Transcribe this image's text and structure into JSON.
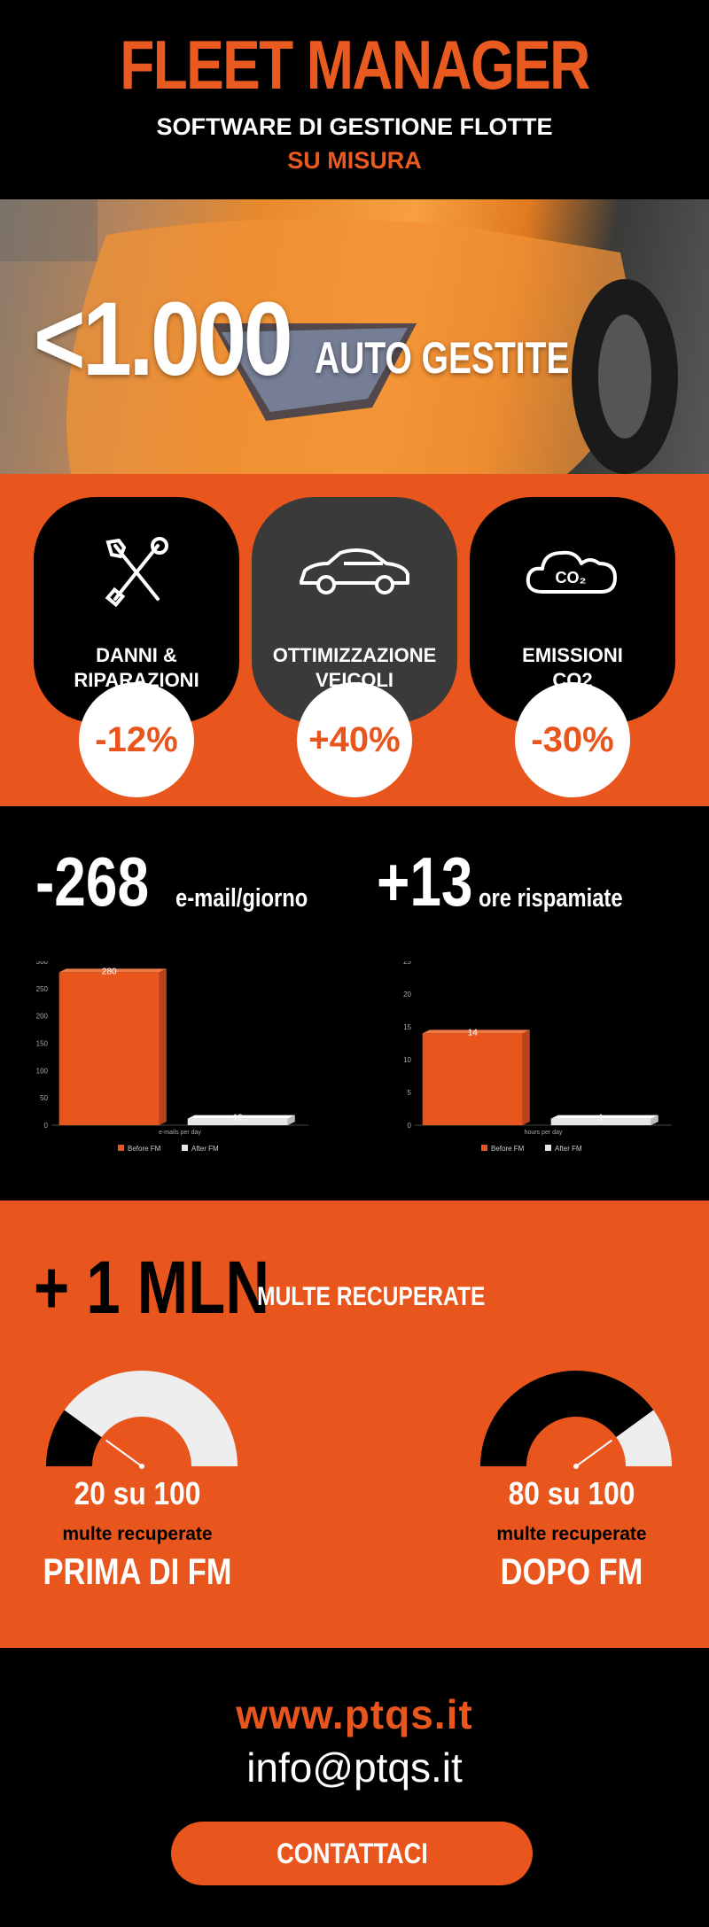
{
  "header": {
    "title": "FLEET MANAGER",
    "subtitle_line1": "SOFTWARE DI GESTIONE FLOTTE",
    "subtitle_line2": "SU MISURA"
  },
  "hero": {
    "big": "<1.000",
    "small": "AUTO GESTITE"
  },
  "kpis": [
    {
      "label_line1": "DANNI &",
      "label_line2": "RIPARAZIONI",
      "value": "-12%",
      "icon": "tools-icon"
    },
    {
      "label_line1": "OTTIMIZZAZIONE",
      "label_line2": "VEICOLI",
      "value": "+40%",
      "icon": "car-icon"
    },
    {
      "label_line1": "EMISSIONI",
      "label_line2": "CO2",
      "value": "-30%",
      "icon": "co2-cloud-icon"
    }
  ],
  "stats": {
    "emails_big": "-268",
    "emails_small": "e-mail/giorno",
    "hours_big": "+13",
    "hours_small": "ore rispamiate"
  },
  "chart_data": [
    {
      "type": "bar",
      "categories": [
        "Before FM",
        "After FM"
      ],
      "values": [
        280,
        12
      ],
      "data_labels": [
        "280",
        "12"
      ],
      "xlabel": "e-mails per day",
      "ylabel": "",
      "ylim": [
        0,
        300
      ],
      "yticks": [
        0,
        50,
        100,
        150,
        200,
        250,
        300
      ],
      "legend": [
        "Before FM",
        "After FM"
      ],
      "legend_position": "bottom",
      "colors": [
        "#e8561e",
        "#e6e6e6"
      ]
    },
    {
      "type": "bar",
      "categories": [
        "Before FM",
        "After FM"
      ],
      "values": [
        14,
        1
      ],
      "data_labels": [
        "14",
        "1"
      ],
      "xlabel": "hours per day",
      "ylabel": "",
      "ylim": [
        0,
        25
      ],
      "yticks": [
        0,
        5,
        10,
        15,
        20,
        25
      ],
      "legend": [
        "Before FM",
        "After FM"
      ],
      "legend_position": "bottom",
      "colors": [
        "#e8561e",
        "#e6e6e6"
      ]
    }
  ],
  "fines": {
    "big": "+ 1 MLN",
    "small": "MULTE RECUPERATE",
    "gauges": [
      {
        "value": 20,
        "max": 100,
        "ratio": "20 su 100",
        "sub": "multe recuperate",
        "when": "PRIMA DI FM"
      },
      {
        "value": 80,
        "max": 100,
        "ratio": "80 su 100",
        "sub": "multe recuperate",
        "when": "DOPO FM"
      }
    ]
  },
  "footer": {
    "website": "www.ptqs.it",
    "email": "info@ptqs.it",
    "cta": "CONTATTACI"
  },
  "colors": {
    "accent": "#e8561e",
    "dark": "#000000",
    "light": "#ffffff",
    "gauge_light": "#eeeeee"
  }
}
